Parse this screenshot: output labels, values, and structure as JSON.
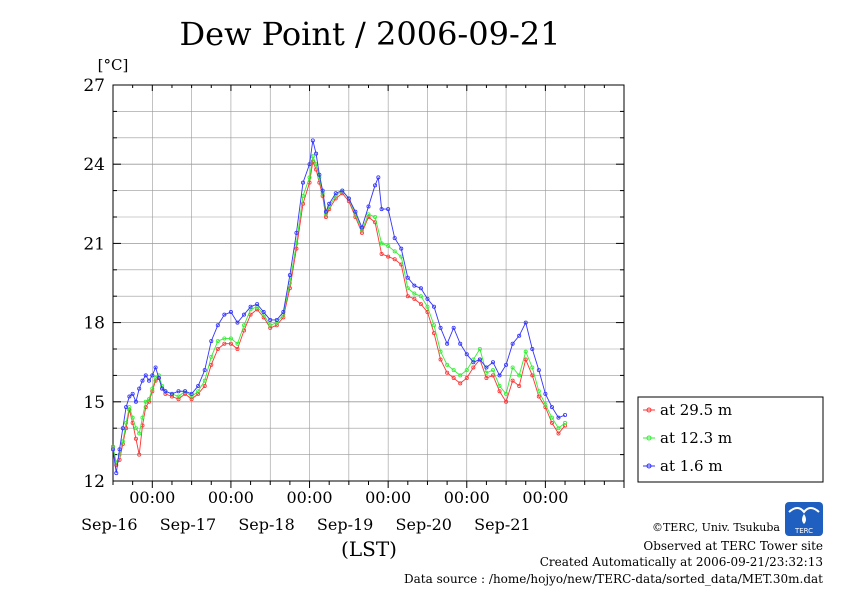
{
  "chart_data": {
    "type": "line",
    "title": "Dew Point / 2006-09-21",
    "ylabel": "[°C]",
    "xlabel": "(LST)",
    "ylim": [
      12,
      27
    ],
    "yticks": [
      12,
      15,
      18,
      21,
      24,
      27
    ],
    "xlim_days": [
      "Sep-15 12:00",
      "Sep-21 24:00"
    ],
    "time_tick_label": "00:00",
    "date_labels": [
      "Sep-16",
      "Sep-17",
      "Sep-18",
      "Sep-19",
      "Sep-20",
      "Sep-21"
    ],
    "grid": true,
    "legend_position": "right",
    "series": [
      {
        "name": "at 29.5 m",
        "color": "#ff3333",
        "points": [
          [
            "09-15 12:00",
            13.3
          ],
          [
            "09-15 13:00",
            12.6
          ],
          [
            "09-15 14:00",
            12.8
          ],
          [
            "09-15 15:00",
            13.4
          ],
          [
            "09-15 16:00",
            14.0
          ],
          [
            "09-15 17:00",
            14.7
          ],
          [
            "09-15 18:00",
            14.2
          ],
          [
            "09-15 19:00",
            13.6
          ],
          [
            "09-15 20:00",
            13.0
          ],
          [
            "09-15 21:00",
            14.1
          ],
          [
            "09-15 22:00",
            14.8
          ],
          [
            "09-15 23:00",
            15.0
          ],
          [
            "09-16 00:00",
            15.4
          ],
          [
            "09-16 01:00",
            15.8
          ],
          [
            "09-16 02:00",
            15.9
          ],
          [
            "09-16 03:00",
            15.5
          ],
          [
            "09-16 04:00",
            15.3
          ],
          [
            "09-16 06:00",
            15.2
          ],
          [
            "09-16 08:00",
            15.1
          ],
          [
            "09-16 10:00",
            15.3
          ],
          [
            "09-16 12:00",
            15.1
          ],
          [
            "09-16 14:00",
            15.3
          ],
          [
            "09-16 16:00",
            15.6
          ],
          [
            "09-16 18:00",
            16.4
          ],
          [
            "09-16 20:00",
            17.0
          ],
          [
            "09-16 22:00",
            17.2
          ],
          [
            "09-17 00:00",
            17.2
          ],
          [
            "09-17 02:00",
            17.0
          ],
          [
            "09-17 04:00",
            17.7
          ],
          [
            "09-17 06:00",
            18.3
          ],
          [
            "09-17 08:00",
            18.5
          ],
          [
            "09-17 10:00",
            18.2
          ],
          [
            "09-17 12:00",
            17.8
          ],
          [
            "09-17 14:00",
            17.9
          ],
          [
            "09-17 16:00",
            18.2
          ],
          [
            "09-17 18:00",
            19.3
          ],
          [
            "09-17 20:00",
            20.8
          ],
          [
            "09-17 22:00",
            22.5
          ],
          [
            "09-18 00:00",
            23.3
          ],
          [
            "09-18 01:00",
            24.1
          ],
          [
            "09-18 02:00",
            23.8
          ],
          [
            "09-18 03:00",
            23.3
          ],
          [
            "09-18 04:00",
            22.8
          ],
          [
            "09-18 05:00",
            22.0
          ],
          [
            "09-18 06:00",
            22.3
          ],
          [
            "09-18 08:00",
            22.7
          ],
          [
            "09-18 10:00",
            22.9
          ],
          [
            "09-18 12:00",
            22.6
          ],
          [
            "09-18 14:00",
            22.0
          ],
          [
            "09-18 16:00",
            21.4
          ],
          [
            "09-18 18:00",
            22.0
          ],
          [
            "09-18 20:00",
            21.8
          ],
          [
            "09-18 22:00",
            20.6
          ],
          [
            "09-19 00:00",
            20.5
          ],
          [
            "09-19 02:00",
            20.4
          ],
          [
            "09-19 04:00",
            20.2
          ],
          [
            "09-19 06:00",
            19.0
          ],
          [
            "09-19 08:00",
            18.9
          ],
          [
            "09-19 10:00",
            18.7
          ],
          [
            "09-19 12:00",
            18.4
          ],
          [
            "09-19 14:00",
            17.6
          ],
          [
            "09-19 16:00",
            16.6
          ],
          [
            "09-19 18:00",
            16.1
          ],
          [
            "09-19 20:00",
            15.9
          ],
          [
            "09-19 22:00",
            15.7
          ],
          [
            "09-20 00:00",
            15.9
          ],
          [
            "09-20 02:00",
            16.3
          ],
          [
            "09-20 04:00",
            16.6
          ],
          [
            "09-20 06:00",
            15.9
          ],
          [
            "09-20 08:00",
            16.0
          ],
          [
            "09-20 10:00",
            15.4
          ],
          [
            "09-20 12:00",
            15.0
          ],
          [
            "09-20 14:00",
            15.8
          ],
          [
            "09-20 16:00",
            15.6
          ],
          [
            "09-20 18:00",
            16.6
          ],
          [
            "09-20 20:00",
            16.0
          ],
          [
            "09-20 22:00",
            15.2
          ],
          [
            "09-21 00:00",
            14.8
          ],
          [
            "09-21 02:00",
            14.2
          ],
          [
            "09-21 04:00",
            13.8
          ],
          [
            "09-21 06:00",
            14.1
          ]
        ]
      },
      {
        "name": "at 12.3 m",
        "color": "#33ee33",
        "points": [
          [
            "09-15 12:00",
            13.3
          ],
          [
            "09-15 13:00",
            12.7
          ],
          [
            "09-15 14:00",
            13.0
          ],
          [
            "09-15 15:00",
            13.5
          ],
          [
            "09-15 16:00",
            14.2
          ],
          [
            "09-15 17:00",
            14.8
          ],
          [
            "09-15 18:00",
            14.4
          ],
          [
            "09-15 19:00",
            14.0
          ],
          [
            "09-15 20:00",
            13.8
          ],
          [
            "09-15 21:00",
            14.4
          ],
          [
            "09-15 22:00",
            15.0
          ],
          [
            "09-15 23:00",
            15.1
          ],
          [
            "09-16 00:00",
            15.5
          ],
          [
            "09-16 01:00",
            15.9
          ],
          [
            "09-16 02:00",
            16.0
          ],
          [
            "09-16 03:00",
            15.6
          ],
          [
            "09-16 04:00",
            15.4
          ],
          [
            "09-16 06:00",
            15.3
          ],
          [
            "09-16 08:00",
            15.2
          ],
          [
            "09-16 10:00",
            15.4
          ],
          [
            "09-16 12:00",
            15.2
          ],
          [
            "09-16 14:00",
            15.4
          ],
          [
            "09-16 16:00",
            15.8
          ],
          [
            "09-16 18:00",
            16.7
          ],
          [
            "09-16 20:00",
            17.3
          ],
          [
            "09-16 22:00",
            17.4
          ],
          [
            "09-17 00:00",
            17.4
          ],
          [
            "09-17 02:00",
            17.2
          ],
          [
            "09-17 04:00",
            17.9
          ],
          [
            "09-17 06:00",
            18.5
          ],
          [
            "09-17 08:00",
            18.6
          ],
          [
            "09-17 10:00",
            18.3
          ],
          [
            "09-17 12:00",
            17.9
          ],
          [
            "09-17 14:00",
            18.0
          ],
          [
            "09-17 16:00",
            18.3
          ],
          [
            "09-17 18:00",
            19.5
          ],
          [
            "09-17 20:00",
            21.0
          ],
          [
            "09-17 22:00",
            22.8
          ],
          [
            "09-18 00:00",
            23.5
          ],
          [
            "09-18 01:00",
            24.3
          ],
          [
            "09-18 02:00",
            24.0
          ],
          [
            "09-18 03:00",
            23.5
          ],
          [
            "09-18 04:00",
            22.9
          ],
          [
            "09-18 05:00",
            22.1
          ],
          [
            "09-18 06:00",
            22.4
          ],
          [
            "09-18 08:00",
            22.8
          ],
          [
            "09-18 10:00",
            23.0
          ],
          [
            "09-18 12:00",
            22.7
          ],
          [
            "09-18 14:00",
            22.1
          ],
          [
            "09-18 16:00",
            21.5
          ],
          [
            "09-18 18:00",
            22.1
          ],
          [
            "09-18 20:00",
            22.0
          ],
          [
            "09-18 22:00",
            21.0
          ],
          [
            "09-19 00:00",
            20.9
          ],
          [
            "09-19 02:00",
            20.7
          ],
          [
            "09-19 04:00",
            20.5
          ],
          [
            "09-19 06:00",
            19.3
          ],
          [
            "09-19 08:00",
            19.1
          ],
          [
            "09-19 10:00",
            19.0
          ],
          [
            "09-19 12:00",
            18.6
          ],
          [
            "09-19 14:00",
            17.9
          ],
          [
            "09-19 16:00",
            16.9
          ],
          [
            "09-19 18:00",
            16.4
          ],
          [
            "09-19 20:00",
            16.2
          ],
          [
            "09-19 22:00",
            16.0
          ],
          [
            "09-20 00:00",
            16.2
          ],
          [
            "09-20 02:00",
            16.6
          ],
          [
            "09-20 04:00",
            17.0
          ],
          [
            "09-20 06:00",
            16.1
          ],
          [
            "09-20 08:00",
            16.2
          ],
          [
            "09-20 10:00",
            15.6
          ],
          [
            "09-20 12:00",
            15.3
          ],
          [
            "09-20 14:00",
            16.3
          ],
          [
            "09-20 16:00",
            16.0
          ],
          [
            "09-20 18:00",
            16.9
          ],
          [
            "09-20 20:00",
            16.3
          ],
          [
            "09-20 22:00",
            15.4
          ],
          [
            "09-21 00:00",
            14.9
          ],
          [
            "09-21 02:00",
            14.4
          ],
          [
            "09-21 04:00",
            14.0
          ],
          [
            "09-21 06:00",
            14.2
          ]
        ]
      },
      {
        "name": "at 1.6 m",
        "color": "#3333ff",
        "points": [
          [
            "09-15 12:00",
            13.2
          ],
          [
            "09-15 13:00",
            12.3
          ],
          [
            "09-15 14:00",
            13.2
          ],
          [
            "09-15 15:00",
            14.0
          ],
          [
            "09-15 16:00",
            14.8
          ],
          [
            "09-15 17:00",
            15.2
          ],
          [
            "09-15 18:00",
            15.3
          ],
          [
            "09-15 19:00",
            15.0
          ],
          [
            "09-15 20:00",
            15.5
          ],
          [
            "09-15 21:00",
            15.8
          ],
          [
            "09-15 22:00",
            16.0
          ],
          [
            "09-15 23:00",
            15.8
          ],
          [
            "09-16 00:00",
            16.0
          ],
          [
            "09-16 01:00",
            16.3
          ],
          [
            "09-16 02:00",
            15.9
          ],
          [
            "09-16 03:00",
            15.5
          ],
          [
            "09-16 04:00",
            15.4
          ],
          [
            "09-16 06:00",
            15.3
          ],
          [
            "09-16 08:00",
            15.4
          ],
          [
            "09-16 10:00",
            15.4
          ],
          [
            "09-16 12:00",
            15.3
          ],
          [
            "09-16 14:00",
            15.6
          ],
          [
            "09-16 16:00",
            16.2
          ],
          [
            "09-16 18:00",
            17.3
          ],
          [
            "09-16 20:00",
            17.9
          ],
          [
            "09-16 22:00",
            18.3
          ],
          [
            "09-17 00:00",
            18.4
          ],
          [
            "09-17 02:00",
            18.0
          ],
          [
            "09-17 04:00",
            18.3
          ],
          [
            "09-17 06:00",
            18.6
          ],
          [
            "09-17 08:00",
            18.7
          ],
          [
            "09-17 10:00",
            18.4
          ],
          [
            "09-17 12:00",
            18.1
          ],
          [
            "09-17 14:00",
            18.1
          ],
          [
            "09-17 16:00",
            18.4
          ],
          [
            "09-17 18:00",
            19.8
          ],
          [
            "09-17 20:00",
            21.4
          ],
          [
            "09-17 22:00",
            23.3
          ],
          [
            "09-18 00:00",
            24.0
          ],
          [
            "09-18 01:00",
            24.9
          ],
          [
            "09-18 02:00",
            24.4
          ],
          [
            "09-18 03:00",
            23.6
          ],
          [
            "09-18 04:00",
            23.0
          ],
          [
            "09-18 05:00",
            22.2
          ],
          [
            "09-18 06:00",
            22.5
          ],
          [
            "09-18 08:00",
            22.9
          ],
          [
            "09-18 10:00",
            23.0
          ],
          [
            "09-18 12:00",
            22.7
          ],
          [
            "09-18 14:00",
            22.2
          ],
          [
            "09-18 16:00",
            21.6
          ],
          [
            "09-18 18:00",
            22.4
          ],
          [
            "09-18 20:00",
            23.2
          ],
          [
            "09-18 21:00",
            23.5
          ],
          [
            "09-18 22:00",
            22.3
          ],
          [
            "09-19 00:00",
            22.3
          ],
          [
            "09-19 02:00",
            21.2
          ],
          [
            "09-19 04:00",
            20.8
          ],
          [
            "09-19 06:00",
            19.7
          ],
          [
            "09-19 08:00",
            19.4
          ],
          [
            "09-19 10:00",
            19.3
          ],
          [
            "09-19 12:00",
            18.9
          ],
          [
            "09-19 14:00",
            18.6
          ],
          [
            "09-19 16:00",
            17.8
          ],
          [
            "09-19 18:00",
            17.2
          ],
          [
            "09-19 20:00",
            17.8
          ],
          [
            "09-19 22:00",
            17.2
          ],
          [
            "09-20 00:00",
            16.8
          ],
          [
            "09-20 02:00",
            16.5
          ],
          [
            "09-20 04:00",
            16.6
          ],
          [
            "09-20 06:00",
            16.3
          ],
          [
            "09-20 08:00",
            16.5
          ],
          [
            "09-20 10:00",
            16.0
          ],
          [
            "09-20 12:00",
            16.4
          ],
          [
            "09-20 14:00",
            17.2
          ],
          [
            "09-20 16:00",
            17.5
          ],
          [
            "09-20 18:00",
            18.0
          ],
          [
            "09-20 20:00",
            17.0
          ],
          [
            "09-20 22:00",
            16.2
          ],
          [
            "09-21 00:00",
            15.3
          ],
          [
            "09-21 02:00",
            14.8
          ],
          [
            "09-21 04:00",
            14.4
          ],
          [
            "09-21 06:00",
            14.5
          ]
        ]
      }
    ]
  },
  "footer": {
    "copyright": "©TERC, Univ. Tsukuba",
    "observed": "Observed at TERC Tower site",
    "created": "Created Automatically at 2006-09-21/23:32:13",
    "source": "Data source : /home/hojyo/new/TERC-data/sorted_data/MET.30m.dat",
    "logo_text": "TERC"
  }
}
